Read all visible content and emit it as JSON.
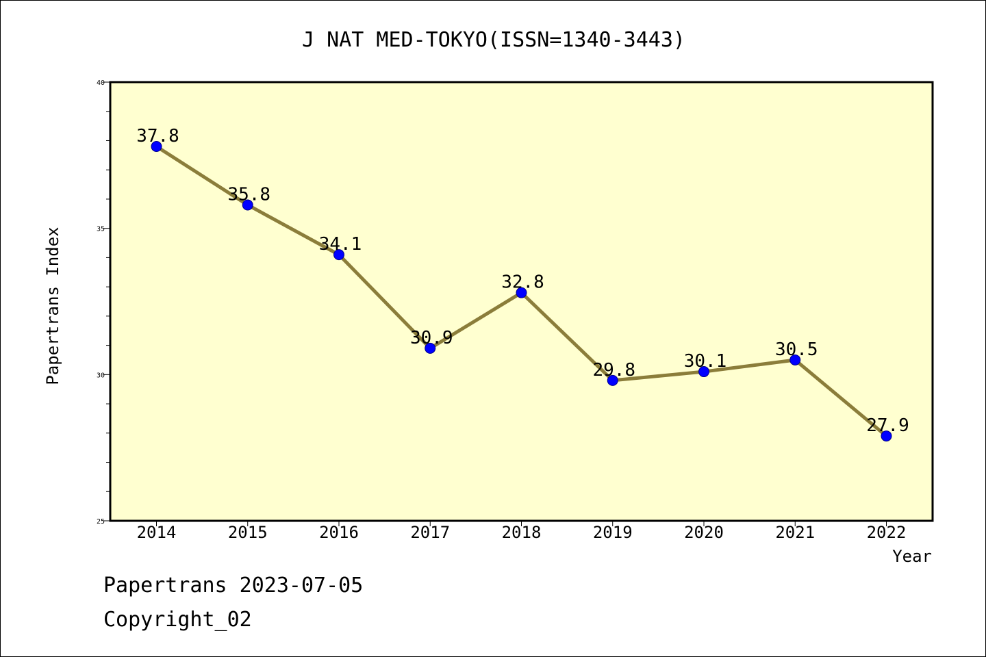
{
  "chart_data": {
    "type": "line",
    "title": "J NAT MED-TOKYO(ISSN=1340-3443)",
    "xlabel": "Year",
    "ylabel": "Papertrans Index",
    "x": [
      "2014",
      "2015",
      "2016",
      "2017",
      "2018",
      "2019",
      "2020",
      "2021",
      "2022"
    ],
    "values": [
      37.8,
      35.8,
      34.1,
      30.9,
      32.8,
      29.8,
      30.1,
      30.5,
      27.9
    ],
    "data_labels": [
      "37.8",
      "35.8",
      "34.1",
      "30.9",
      "32.8",
      "29.8",
      "30.1",
      "30.5",
      "27.9"
    ],
    "ylim": [
      25,
      40
    ],
    "yticks": [
      "25",
      "30",
      "35",
      "40"
    ],
    "grid": false,
    "colors": {
      "plot_background": "#FFFFD0",
      "line": "#8B7D3A",
      "marker": "#0000FF"
    }
  },
  "footer": {
    "date_line": "Papertrans 2023-07-05",
    "copyright": "Copyright_02"
  }
}
